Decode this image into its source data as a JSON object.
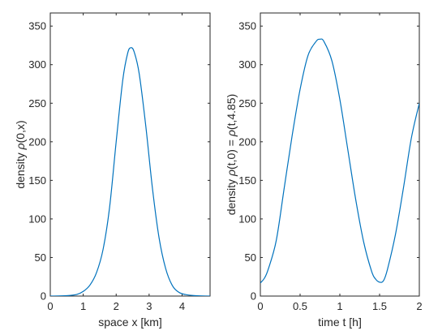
{
  "chart_data": [
    {
      "type": "line",
      "xlabel_parts": [
        "space x [km]"
      ],
      "ylabel_parts": [
        "density ",
        "ρ",
        "(0,x)"
      ],
      "xlim": [
        0,
        4.85
      ],
      "ylim": [
        0,
        367
      ],
      "xticks": [
        "0",
        "1",
        "2",
        "3",
        "4"
      ],
      "yticks": [
        "0",
        "50",
        "100",
        "150",
        "200",
        "250",
        "300",
        "350"
      ],
      "x": [
        0,
        0.5,
        0.8,
        1.0,
        1.2,
        1.4,
        1.6,
        1.8,
        2.0,
        2.2,
        2.35,
        2.45,
        2.55,
        2.7,
        2.9,
        3.1,
        3.3,
        3.5,
        3.7,
        3.9,
        4.1,
        4.4,
        4.85
      ],
      "series": [
        {
          "values": [
            0,
            0.5,
            2,
            6,
            14,
            30,
            60,
            115,
            200,
            280,
            315,
            322,
            316,
            288,
            220,
            140,
            76,
            36,
            14,
            5,
            2,
            0.5,
            0
          ]
        }
      ]
    },
    {
      "type": "line",
      "xlabel_parts": [
        "time t [h]"
      ],
      "ylabel_parts": [
        "density ",
        "ρ",
        "(t,0) = ",
        "ρ",
        "(t,4.85)"
      ],
      "xlim": [
        0,
        2
      ],
      "ylim": [
        0,
        367
      ],
      "xticks": [
        "0",
        "0.5",
        "1",
        "1.5",
        "2"
      ],
      "yticks": [
        "0",
        "50",
        "100",
        "150",
        "200",
        "250",
        "300",
        "350"
      ],
      "x": [
        0,
        0.05,
        0.1,
        0.2,
        0.3,
        0.4,
        0.5,
        0.6,
        0.7,
        0.75,
        0.8,
        0.9,
        1.0,
        1.1,
        1.2,
        1.3,
        1.4,
        1.45,
        1.5,
        1.55,
        1.6,
        1.7,
        1.8,
        1.9,
        2.0
      ],
      "series": [
        {
          "values": [
            17,
            23,
            35,
            72,
            140,
            208,
            268,
            312,
            330,
            333,
            330,
            305,
            255,
            190,
            125,
            70,
            32,
            22,
            18,
            20,
            35,
            80,
            140,
            205,
            250
          ]
        }
      ]
    }
  ]
}
